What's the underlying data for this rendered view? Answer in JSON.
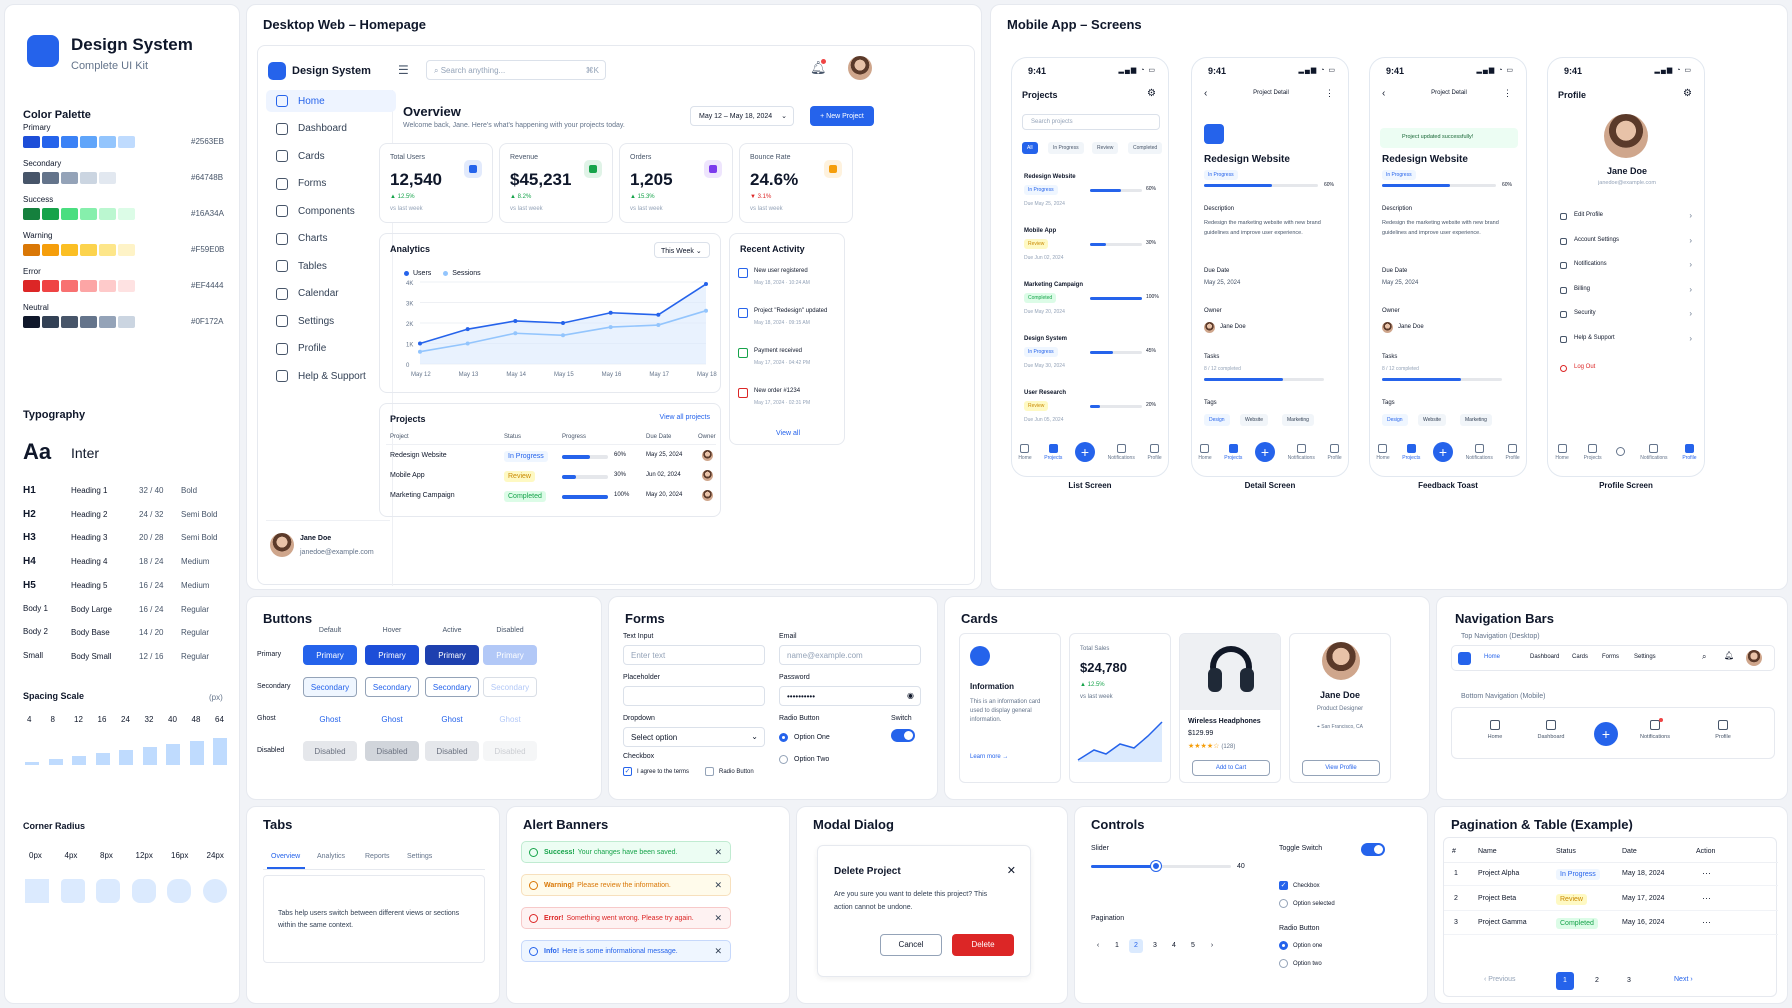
{
  "brand": {
    "title": "Design System",
    "subtitle": "Complete UI Kit"
  },
  "colors": {
    "title": "Color Palette",
    "rows": [
      {
        "name": "Primary",
        "hex": "#2563EB",
        "shades": [
          "#1d4ed8",
          "#2563eb",
          "#3b82f6",
          "#60a5fa",
          "#93c5fd",
          "#bfdbfe"
        ]
      },
      {
        "name": "Secondary",
        "hex": "#64748B",
        "shades": [
          "#475569",
          "#64748b",
          "#94a3b8",
          "#cbd5e1",
          "#e2e8f0"
        ]
      },
      {
        "name": "Success",
        "hex": "#16A34A",
        "shades": [
          "#15803d",
          "#16a34a",
          "#4ade80",
          "#86efac",
          "#bbf7d0",
          "#dcfce7"
        ]
      },
      {
        "name": "Warning",
        "hex": "#F59E0B",
        "shades": [
          "#d97706",
          "#f59e0b",
          "#fbbf24",
          "#fcd34d",
          "#fde68a",
          "#fef3c7"
        ]
      },
      {
        "name": "Error",
        "hex": "#EF4444",
        "shades": [
          "#dc2626",
          "#ef4444",
          "#f87171",
          "#fca5a5",
          "#fecaca",
          "#fee2e2"
        ]
      },
      {
        "name": "Neutral",
        "hex": "#0F172A",
        "shades": [
          "#0f172a",
          "#334155",
          "#475569",
          "#64748b",
          "#94a3b8",
          "#cbd5e1"
        ]
      }
    ]
  },
  "typography": {
    "title": "Typography",
    "sample": "Aa",
    "font": "Inter",
    "rows": [
      [
        "H1",
        "Heading 1",
        "32 / 40",
        "Bold"
      ],
      [
        "H2",
        "Heading 2",
        "24 / 32",
        "Semi Bold"
      ],
      [
        "H3",
        "Heading 3",
        "20 / 28",
        "Semi Bold"
      ],
      [
        "H4",
        "Heading 4",
        "18 / 24",
        "Medium"
      ],
      [
        "H5",
        "Heading 5",
        "16 / 24",
        "Medium"
      ],
      [
        "Body 1",
        "Body Large",
        "16 / 24",
        "Regular"
      ],
      [
        "Body 2",
        "Body Base",
        "14 / 20",
        "Regular"
      ],
      [
        "Small",
        "Body Small",
        "12 / 16",
        "Regular"
      ]
    ]
  },
  "spacing": {
    "title": "Spacing Scale",
    "unit": "(px)",
    "values": [
      "4",
      "8",
      "12",
      "16",
      "24",
      "32",
      "40",
      "48",
      "64"
    ]
  },
  "radius": {
    "title": "Corner Radius",
    "values": [
      "0px",
      "4px",
      "8px",
      "12px",
      "16px",
      "24px"
    ]
  },
  "desktop": {
    "title": "Desktop Web – Homepage",
    "brand": "Design System",
    "search": "Search anything...",
    "shortcut": "⌘K",
    "nav": [
      "Home",
      "Dashboard",
      "Cards",
      "Forms",
      "Components",
      "Charts",
      "Tables",
      "Calendar",
      "Settings",
      "Profile",
      "Help & Support"
    ],
    "user": {
      "name": "Jane Doe",
      "email": "janedoe@example.com"
    },
    "overview": "Overview",
    "welcome": "Welcome back, Jane. Here's what's happening with your projects today.",
    "daterange": "May 12 – May 18, 2024",
    "newproject": "+ New Project",
    "kpis": [
      {
        "label": "Total Users",
        "value": "12,540",
        "change": "▲ 12.5%",
        "sub": "vs last week",
        "color": "#2563eb"
      },
      {
        "label": "Revenue",
        "value": "$45,231",
        "change": "▲ 8.2%",
        "sub": "vs last week",
        "color": "#16a34a"
      },
      {
        "label": "Orders",
        "value": "1,205",
        "change": "▲ 15.3%",
        "sub": "vs last week",
        "color": "#7c3aed"
      },
      {
        "label": "Bounce Rate",
        "value": "24.6%",
        "change": "▼ 3.1%",
        "sub": "vs last week",
        "color": "#f59e0b"
      }
    ],
    "analytics": {
      "title": "Analytics",
      "filter": "This Week",
      "legend": [
        "Users",
        "Sessions"
      ]
    },
    "activity": {
      "title": "Recent Activity",
      "items": [
        [
          "New user registered",
          "May 18, 2024 · 10:24 AM"
        ],
        [
          "Project \"Redesign\" updated",
          "May 18, 2024 · 09:15 AM"
        ],
        [
          "Payment received",
          "May 17, 2024 · 04:42 PM"
        ],
        [
          "New order #1234",
          "May 17, 2024 · 02:31 PM"
        ]
      ],
      "viewall": "View all"
    },
    "projects": {
      "title": "Projects",
      "viewall": "View all projects",
      "headers": [
        "Project",
        "Status",
        "Progress",
        "Due Date",
        "Owner"
      ],
      "rows": [
        {
          "name": "Redesign Website",
          "status": "In Progress",
          "pct": "60%",
          "p": 0.6,
          "due": "May 25, 2024"
        },
        {
          "name": "Mobile App",
          "status": "Review",
          "pct": "30%",
          "p": 0.3,
          "due": "Jun 02, 2024"
        },
        {
          "name": "Marketing Campaign",
          "status": "Completed",
          "pct": "100%",
          "p": 1,
          "due": "May 20, 2024"
        }
      ]
    }
  },
  "chart_data": {
    "type": "line",
    "categories": [
      "May 12",
      "May 13",
      "May 14",
      "May 15",
      "May 16",
      "May 17",
      "May 18"
    ],
    "ylim": [
      0,
      4000
    ],
    "yticks": [
      "0",
      "1K",
      "2K",
      "3K",
      "4K"
    ],
    "series": [
      {
        "name": "Users",
        "values": [
          1000,
          1700,
          2100,
          2000,
          2500,
          2400,
          3900
        ]
      },
      {
        "name": "Sessions",
        "values": [
          600,
          1000,
          1500,
          1400,
          1800,
          1900,
          2600
        ]
      }
    ]
  },
  "mobile": {
    "title": "Mobile App – Screens",
    "time": "9:41",
    "signal": "▂▄▆ ◔ ▭",
    "list": {
      "title": "Projects",
      "search": "Search projects",
      "filters": [
        "All",
        "In Progress",
        "Review",
        "Completed"
      ],
      "items": [
        {
          "name": "Redesign Website",
          "status": "In Progress",
          "pct": "60%",
          "p": 0.6,
          "due": "Due May 25, 2024"
        },
        {
          "name": "Mobile App",
          "status": "Review",
          "pct": "30%",
          "p": 0.3,
          "due": "Due Jun 02, 2024"
        },
        {
          "name": "Marketing Campaign",
          "status": "Completed",
          "pct": "100%",
          "p": 1,
          "due": "Due May 20, 2024"
        },
        {
          "name": "Design System",
          "status": "In Progress",
          "pct": "45%",
          "p": 0.45,
          "due": "Due May 30, 2024"
        },
        {
          "name": "User Research",
          "status": "Review",
          "pct": "20%",
          "p": 0.2,
          "due": "Due Jun 05, 2024"
        }
      ],
      "caption": "List Screen"
    },
    "detail": {
      "title": "Project Detail",
      "name": "Redesign Website",
      "status": "In Progress",
      "pct": "60%",
      "desc_label": "Description",
      "desc": "Redesign the marketing website with new brand guidelines and improve user experience.",
      "due_label": "Due Date",
      "due": "May 25, 2024",
      "owner_label": "Owner",
      "owner": "Jane Doe",
      "tasks_label": "Tasks",
      "tasks": "8 / 12 completed",
      "tags_label": "Tags",
      "tags": [
        "Design",
        "Website",
        "Marketing"
      ],
      "caption": "Detail Screen",
      "toast": "Project updated successfully!",
      "caption2": "Feedback Toast"
    },
    "profile": {
      "title": "Profile",
      "name": "Jane Doe",
      "email": "janedoe@example.com",
      "items": [
        "Edit Profile",
        "Account Settings",
        "Notifications",
        "Billing",
        "Security",
        "Help & Support"
      ],
      "logout": "Log Out",
      "caption": "Profile Screen"
    },
    "tabs": [
      "Home",
      "Projects",
      "Notifications",
      "Profile"
    ]
  },
  "buttons": {
    "title": "Buttons",
    "states": [
      "Default",
      "Hover",
      "Active",
      "Disabled"
    ],
    "rows": [
      {
        "label": "Primary"
      },
      {
        "label": "Secondary"
      },
      {
        "label": "Ghost"
      },
      {
        "label": "Disabled"
      }
    ],
    "texts": [
      "Primary",
      "Secondary",
      "Ghost",
      "Disabled"
    ]
  },
  "forms": {
    "title": "Forms",
    "text_label": "Text Input",
    "text_ph": "Enter text",
    "email_label": "Email",
    "email_ph": "name@example.com",
    "ph_label": "Placeholder",
    "pw_label": "Password",
    "pw": "••••••••••",
    "dd_label": "Dropdown",
    "dd": "Select option",
    "radio_label": "Radio Button",
    "r1": "Option One",
    "r2": "Option Two",
    "switch_label": "Switch",
    "cb_label": "Checkbox",
    "cb1": "I agree to the terms",
    "cb2": "Radio Button"
  },
  "cards": {
    "title": "Cards",
    "info": {
      "title": "Information",
      "text": "This is an information card used to display general information.",
      "link": "Learn more →"
    },
    "sales": {
      "label": "Total Sales",
      "value": "$24,780",
      "change": "▲ 12.5%",
      "sub": "vs last week"
    },
    "product": {
      "name": "Wireless Headphones",
      "price": "$129.99",
      "rating": "★★★★☆",
      "count": "(128)",
      "cta": "Add to Cart"
    },
    "person": {
      "name": "Jane Doe",
      "role": "Product Designer",
      "loc": "San Francisco, CA",
      "cta": "View Profile"
    }
  },
  "navbars": {
    "title": "Navigation Bars",
    "top_label": "Top Navigation (Desktop)",
    "top_items": [
      "Home",
      "Dashboard",
      "Cards",
      "Forms",
      "Settings"
    ],
    "bottom_label": "Bottom Navigation (Mobile)",
    "bottom_items": [
      "Home",
      "Dashboard",
      "Notifications",
      "Profile"
    ]
  },
  "tabs": {
    "title": "Tabs",
    "items": [
      "Overview",
      "Analytics",
      "Reports",
      "Settings"
    ],
    "text": "Tabs help users switch between different views or sections within the same context."
  },
  "alerts": {
    "title": "Alert Banners",
    "items": [
      {
        "b": "Success!",
        "t": "Your changes have been saved.",
        "bg": "#ecfdf3",
        "c": "#16a34a"
      },
      {
        "b": "Warning!",
        "t": "Please review the information.",
        "bg": "#fffbeb",
        "c": "#d97706"
      },
      {
        "b": "Error!",
        "t": "Something went wrong. Please try again.",
        "bg": "#fef2f2",
        "c": "#dc2626"
      },
      {
        "b": "Info!",
        "t": "Here is some informational message.",
        "bg": "#eff6ff",
        "c": "#2563eb"
      }
    ]
  },
  "modal": {
    "title": "Modal Dialog",
    "heading": "Delete Project",
    "text": "Are you sure you want to delete this project? This action cannot be undone.",
    "cancel": "Cancel",
    "delete": "Delete"
  },
  "controls": {
    "title": "Controls",
    "slider": "Slider",
    "slider_val": "40",
    "toggle": "Toggle Switch",
    "checkbox": "Checkbox",
    "option_sel": "Option selected",
    "pagination": "Pagination",
    "pages": [
      "‹",
      "1",
      "2",
      "3",
      "4",
      "5",
      "›"
    ],
    "radio": "Radio Button",
    "r1": "Option one",
    "r2": "Option two"
  },
  "table": {
    "title": "Pagination & Table (Example)",
    "headers": [
      "#",
      "Name",
      "Status",
      "Date",
      "Action"
    ],
    "rows": [
      {
        "n": "1",
        "name": "Project Alpha",
        "status": "In Progress",
        "date": "May 18, 2024"
      },
      {
        "n": "2",
        "name": "Project Beta",
        "status": "Review",
        "date": "May 17, 2024"
      },
      {
        "n": "3",
        "name": "Project Gamma",
        "status": "Completed",
        "date": "May 16, 2024"
      }
    ],
    "prev": "‹ Previous",
    "pages": [
      "1",
      "2",
      "3"
    ],
    "next": "Next ›"
  }
}
